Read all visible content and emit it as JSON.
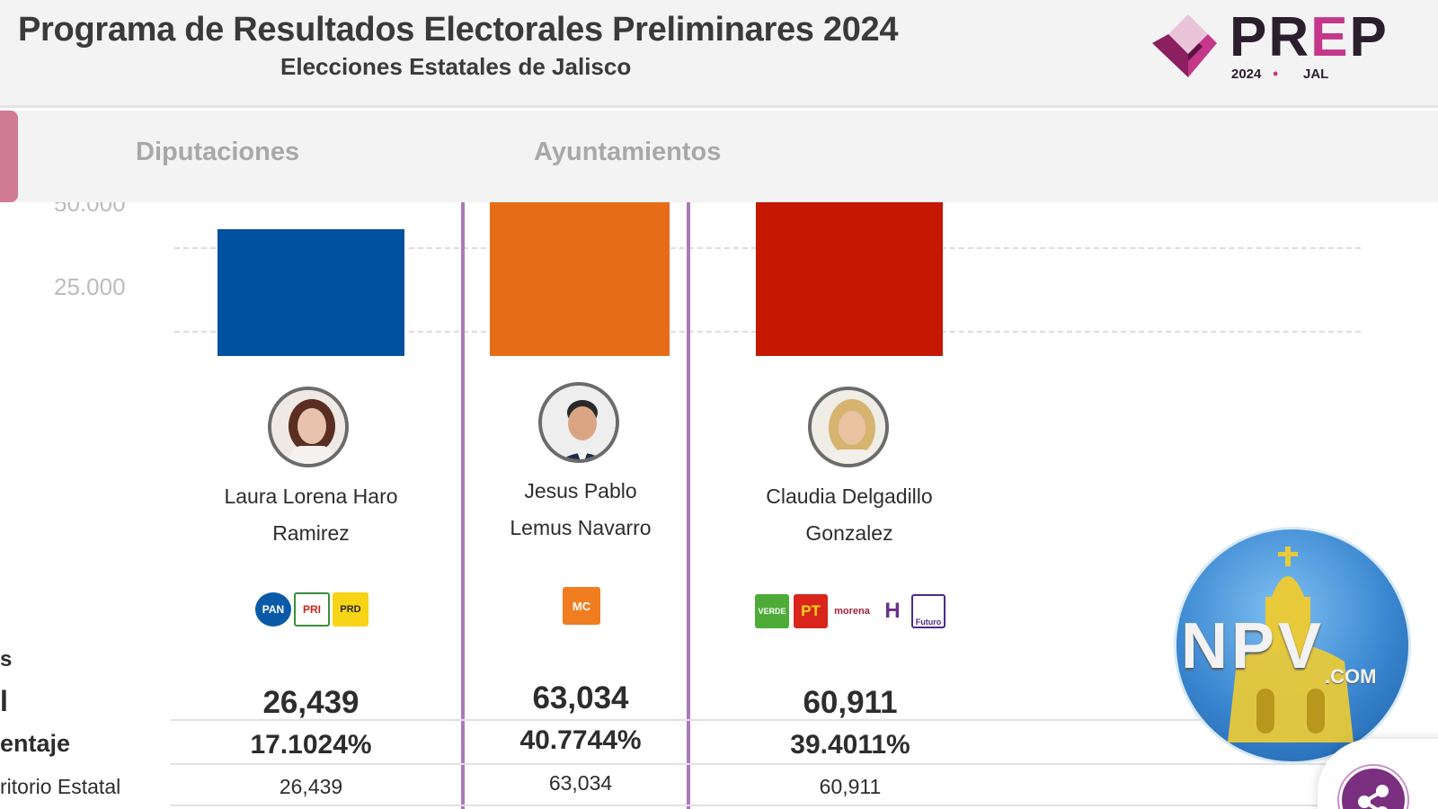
{
  "header": {
    "title": "Programa de Resultados Electorales Preliminares 2024",
    "subtitle": "Elecciones Estatales de Jalisco"
  },
  "logo": {
    "letters_a": "PR",
    "letter_e": "E",
    "letters_b": "P",
    "year": "2024",
    "separator": "•",
    "state": "JAL",
    "colors": {
      "dark": "#2b1e2d",
      "accent": "#c4378a"
    }
  },
  "tabs": [
    {
      "label": "Diputaciones"
    },
    {
      "label": "Ayuntamientos"
    }
  ],
  "chart_data": {
    "type": "bar",
    "categories": [
      "Laura Lorena Haro Ramirez",
      "Jesus Pablo Lemus Navarro",
      "Claudia Delgadillo Gonzalez"
    ],
    "values": [
      26439,
      63034,
      60911
    ],
    "colors": [
      "#00519e",
      "#e66c17",
      "#c61700"
    ],
    "y_ticks": [
      "50.000",
      "25.000"
    ],
    "grid": true
  },
  "candidates": [
    {
      "name_line1": "Laura Lorena Haro",
      "name_line2": "Ramirez",
      "parties": [
        {
          "label": "PAN",
          "color": "#0b5aa8",
          "text_color": "#ffffff"
        },
        {
          "label": "PRI",
          "color": "#ffffff",
          "text_color": "#d2231d"
        },
        {
          "label": "PRD",
          "color": "#f7d415",
          "text_color": "#2a2a2a"
        }
      ],
      "votes": "26,439",
      "percentage": "17.1024%",
      "territorial": "26,439"
    },
    {
      "name_line1": "Jesus Pablo",
      "name_line2": "Lemus Navarro",
      "parties": [
        {
          "label": "MC",
          "color": "#f07d1f",
          "text_color": "#ffffff"
        }
      ],
      "votes": "63,034",
      "percentage": "40.7744%",
      "territorial": "63,034"
    },
    {
      "name_line1": "Claudia Delgadillo",
      "name_line2": "Gonzalez",
      "parties": [
        {
          "label": "VERDE",
          "color": "#4fab38",
          "text_color": "#ffffff"
        },
        {
          "label": "PT",
          "color": "#d9261c",
          "text_color": "#f7d415"
        },
        {
          "label": "morena",
          "color": "#ffffff",
          "text_color": "#a3233a"
        },
        {
          "label": "H",
          "color": "#ffffff",
          "text_color": "#6b2f8a"
        },
        {
          "label": "Futuro",
          "color": "#ffffff",
          "text_color": "#4d2b86"
        }
      ],
      "votes": "60,911",
      "percentage": "39.4011%",
      "territorial": "60,911"
    }
  ],
  "table": {
    "row0_label": "s",
    "row1_label": "l",
    "row2_label": "entaje",
    "row3_label": "ritorio Estatal"
  },
  "watermark": {
    "text": "NPV",
    "sub": ".COM"
  },
  "icons": {
    "share": "share-icon"
  }
}
